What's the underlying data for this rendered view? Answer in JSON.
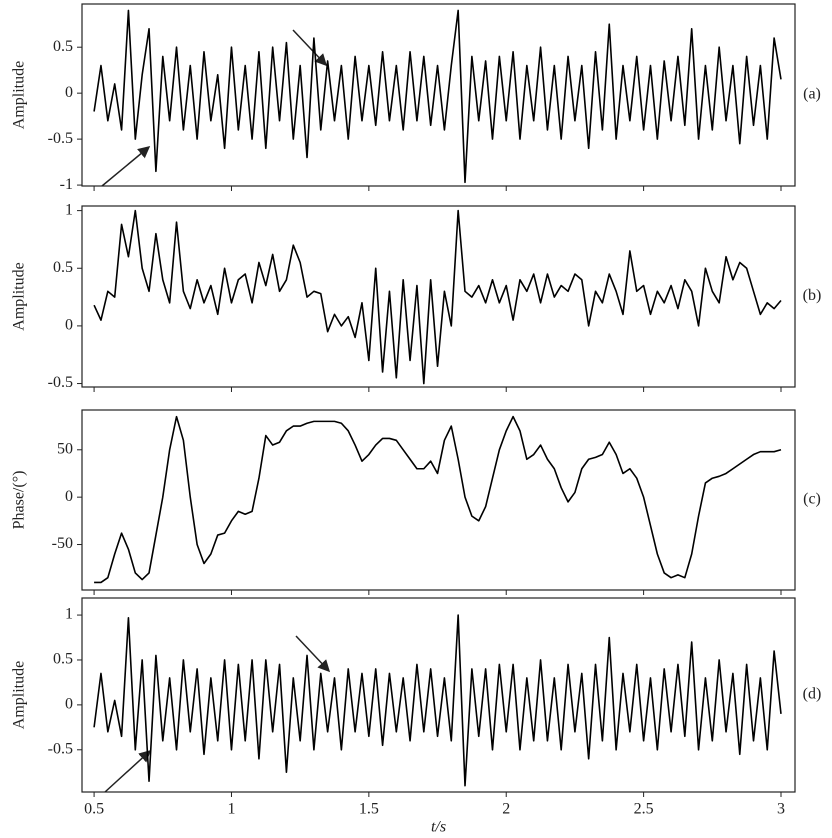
{
  "chart_data": [
    {
      "type": "line",
      "label": "(a)",
      "ylabel": "Amplitude",
      "xlim": [
        0.456,
        3.051
      ],
      "ylim": [
        -1.01,
        0.97
      ],
      "yticks": [
        -1,
        -0.5,
        0,
        0.5
      ],
      "color": "#000000",
      "x": [
        0.5,
        0.525,
        0.55,
        0.575,
        0.6,
        0.625,
        0.65,
        0.675,
        0.7,
        0.725,
        0.75,
        0.775,
        0.8,
        0.825,
        0.85,
        0.875,
        0.9,
        0.925,
        0.95,
        0.975,
        1.0,
        1.025,
        1.05,
        1.075,
        1.1,
        1.125,
        1.15,
        1.175,
        1.2,
        1.225,
        1.25,
        1.275,
        1.3,
        1.325,
        1.35,
        1.375,
        1.4,
        1.425,
        1.45,
        1.475,
        1.5,
        1.525,
        1.55,
        1.575,
        1.6,
        1.625,
        1.65,
        1.675,
        1.7,
        1.725,
        1.75,
        1.775,
        1.8,
        1.825,
        1.85,
        1.875,
        1.9,
        1.925,
        1.95,
        1.975,
        2.0,
        2.025,
        2.05,
        2.075,
        2.1,
        2.125,
        2.15,
        2.175,
        2.2,
        2.225,
        2.25,
        2.275,
        2.3,
        2.325,
        2.35,
        2.375,
        2.4,
        2.425,
        2.45,
        2.475,
        2.5,
        2.525,
        2.55,
        2.575,
        2.6,
        2.625,
        2.65,
        2.675,
        2.7,
        2.725,
        2.75,
        2.775,
        2.8,
        2.825,
        2.85,
        2.875,
        2.9,
        2.925,
        2.95,
        2.975,
        3.0
      ],
      "values": [
        -0.2,
        0.3,
        -0.3,
        0.1,
        -0.4,
        0.9,
        -0.5,
        0.2,
        0.7,
        -0.85,
        0.4,
        -0.3,
        0.5,
        -0.4,
        0.3,
        -0.5,
        0.45,
        -0.3,
        0.2,
        -0.6,
        0.5,
        -0.4,
        0.3,
        -0.5,
        0.45,
        -0.6,
        0.5,
        -0.3,
        0.55,
        -0.5,
        0.3,
        -0.7,
        0.6,
        -0.4,
        0.35,
        -0.3,
        0.3,
        -0.5,
        0.4,
        -0.3,
        0.3,
        -0.35,
        0.45,
        -0.3,
        0.3,
        -0.4,
        0.45,
        -0.3,
        0.4,
        -0.35,
        0.3,
        -0.4,
        0.3,
        0.9,
        -0.97,
        0.4,
        -0.3,
        0.35,
        -0.5,
        0.4,
        -0.3,
        0.45,
        -0.5,
        0.3,
        -0.3,
        0.5,
        -0.4,
        0.3,
        -0.5,
        0.4,
        -0.3,
        0.3,
        -0.6,
        0.45,
        -0.4,
        0.75,
        -0.5,
        0.3,
        -0.3,
        0.4,
        -0.4,
        0.3,
        -0.5,
        0.35,
        -0.3,
        0.4,
        -0.35,
        0.7,
        -0.5,
        0.3,
        -0.4,
        0.5,
        -0.3,
        0.3,
        -0.55,
        0.4,
        -0.35,
        0.3,
        -0.5,
        0.6,
        0.15
      ]
    },
    {
      "type": "line",
      "label": "(b)",
      "ylabel": "Amplitude",
      "xlim": [
        0.456,
        3.051
      ],
      "ylim": [
        -0.53,
        1.04
      ],
      "yticks": [
        -0.5,
        0,
        0.5,
        1
      ],
      "color": "#000000",
      "x": [
        0.5,
        0.525,
        0.55,
        0.575,
        0.6,
        0.625,
        0.65,
        0.675,
        0.7,
        0.725,
        0.75,
        0.775,
        0.8,
        0.825,
        0.85,
        0.875,
        0.9,
        0.925,
        0.95,
        0.975,
        1.0,
        1.025,
        1.05,
        1.075,
        1.1,
        1.125,
        1.15,
        1.175,
        1.2,
        1.225,
        1.25,
        1.275,
        1.3,
        1.325,
        1.35,
        1.375,
        1.4,
        1.425,
        1.45,
        1.475,
        1.5,
        1.525,
        1.55,
        1.575,
        1.6,
        1.625,
        1.65,
        1.675,
        1.7,
        1.725,
        1.75,
        1.775,
        1.8,
        1.825,
        1.85,
        1.875,
        1.9,
        1.925,
        1.95,
        1.975,
        2.0,
        2.025,
        2.05,
        2.075,
        2.1,
        2.125,
        2.15,
        2.175,
        2.2,
        2.225,
        2.25,
        2.275,
        2.3,
        2.325,
        2.35,
        2.375,
        2.4,
        2.425,
        2.45,
        2.475,
        2.5,
        2.525,
        2.55,
        2.575,
        2.6,
        2.625,
        2.65,
        2.675,
        2.7,
        2.725,
        2.75,
        2.775,
        2.8,
        2.825,
        2.85,
        2.875,
        2.9,
        2.925,
        2.95,
        2.975,
        3.0
      ],
      "values": [
        0.18,
        0.05,
        0.3,
        0.25,
        0.88,
        0.6,
        1.0,
        0.5,
        0.3,
        0.8,
        0.4,
        0.2,
        0.9,
        0.3,
        0.15,
        0.4,
        0.2,
        0.35,
        0.1,
        0.5,
        0.2,
        0.4,
        0.45,
        0.2,
        0.55,
        0.35,
        0.62,
        0.3,
        0.4,
        0.7,
        0.55,
        0.25,
        0.3,
        0.28,
        -0.05,
        0.1,
        0.0,
        0.08,
        -0.1,
        0.2,
        -0.3,
        0.5,
        -0.4,
        0.3,
        -0.45,
        0.4,
        -0.3,
        0.35,
        -0.5,
        0.4,
        -0.35,
        0.3,
        0.0,
        1.0,
        0.3,
        0.25,
        0.35,
        0.2,
        0.4,
        0.2,
        0.35,
        0.05,
        0.4,
        0.3,
        0.45,
        0.2,
        0.45,
        0.25,
        0.35,
        0.3,
        0.45,
        0.4,
        0.0,
        0.3,
        0.2,
        0.45,
        0.3,
        0.1,
        0.65,
        0.3,
        0.35,
        0.1,
        0.3,
        0.2,
        0.35,
        0.15,
        0.4,
        0.3,
        0.0,
        0.5,
        0.3,
        0.2,
        0.6,
        0.4,
        0.55,
        0.5,
        0.3,
        0.1,
        0.2,
        0.15,
        0.22
      ]
    },
    {
      "type": "line",
      "label": "(c)",
      "ylabel": "Phase/(°)",
      "xlim": [
        0.456,
        3.051
      ],
      "ylim": [
        -98,
        92
      ],
      "yticks": [
        -50,
        0,
        50
      ],
      "color": "#000000",
      "x": [
        0.5,
        0.525,
        0.55,
        0.575,
        0.6,
        0.625,
        0.65,
        0.675,
        0.7,
        0.725,
        0.75,
        0.775,
        0.8,
        0.825,
        0.85,
        0.875,
        0.9,
        0.925,
        0.95,
        0.975,
        1.0,
        1.025,
        1.05,
        1.075,
        1.1,
        1.125,
        1.15,
        1.175,
        1.2,
        1.225,
        1.25,
        1.275,
        1.3,
        1.325,
        1.35,
        1.375,
        1.4,
        1.425,
        1.45,
        1.475,
        1.5,
        1.525,
        1.55,
        1.575,
        1.6,
        1.625,
        1.65,
        1.675,
        1.7,
        1.725,
        1.75,
        1.775,
        1.8,
        1.825,
        1.85,
        1.875,
        1.9,
        1.925,
        1.95,
        1.975,
        2.0,
        2.025,
        2.05,
        2.075,
        2.1,
        2.125,
        2.15,
        2.175,
        2.2,
        2.225,
        2.25,
        2.275,
        2.3,
        2.325,
        2.35,
        2.375,
        2.4,
        2.425,
        2.45,
        2.475,
        2.5,
        2.525,
        2.55,
        2.575,
        2.6,
        2.625,
        2.65,
        2.675,
        2.7,
        2.725,
        2.75,
        2.775,
        2.8,
        2.825,
        2.85,
        2.875,
        2.9,
        2.925,
        2.95,
        2.975,
        3.0
      ],
      "values": [
        -90,
        -90,
        -85,
        -60,
        -38,
        -55,
        -80,
        -87,
        -80,
        -40,
        0,
        50,
        85,
        60,
        0,
        -50,
        -70,
        -60,
        -40,
        -38,
        -25,
        -15,
        -18,
        -15,
        20,
        65,
        55,
        58,
        70,
        75,
        75,
        78,
        80,
        80,
        80,
        80,
        78,
        70,
        55,
        38,
        45,
        55,
        62,
        62,
        60,
        50,
        40,
        30,
        30,
        38,
        25,
        60,
        75,
        40,
        0,
        -20,
        -25,
        -10,
        20,
        50,
        70,
        85,
        70,
        40,
        45,
        55,
        40,
        30,
        10,
        -5,
        5,
        30,
        40,
        42,
        45,
        58,
        45,
        25,
        30,
        20,
        0,
        -30,
        -60,
        -80,
        -85,
        -82,
        -85,
        -60,
        -20,
        15,
        20,
        22,
        25,
        30,
        35,
        40,
        45,
        48,
        48,
        48,
        50
      ]
    },
    {
      "type": "line",
      "label": "(d)",
      "ylabel": "Amplitude",
      "xlabel": "t/s",
      "xlim": [
        0.456,
        3.051
      ],
      "ylim": [
        -0.97,
        1.19
      ],
      "yticks": [
        -0.5,
        0,
        0.5,
        1
      ],
      "xticks": [
        0.5,
        1,
        1.5,
        2,
        2.5,
        3
      ],
      "color": "#000000",
      "x": [
        0.5,
        0.525,
        0.55,
        0.575,
        0.6,
        0.625,
        0.65,
        0.675,
        0.7,
        0.725,
        0.75,
        0.775,
        0.8,
        0.825,
        0.85,
        0.875,
        0.9,
        0.925,
        0.95,
        0.975,
        1.0,
        1.025,
        1.05,
        1.075,
        1.1,
        1.125,
        1.15,
        1.175,
        1.2,
        1.225,
        1.25,
        1.275,
        1.3,
        1.325,
        1.35,
        1.375,
        1.4,
        1.425,
        1.45,
        1.475,
        1.5,
        1.525,
        1.55,
        1.575,
        1.6,
        1.625,
        1.65,
        1.675,
        1.7,
        1.725,
        1.75,
        1.775,
        1.8,
        1.825,
        1.85,
        1.875,
        1.9,
        1.925,
        1.95,
        1.975,
        2.0,
        2.025,
        2.05,
        2.075,
        2.1,
        2.125,
        2.15,
        2.175,
        2.2,
        2.225,
        2.25,
        2.275,
        2.3,
        2.325,
        2.35,
        2.375,
        2.4,
        2.425,
        2.45,
        2.475,
        2.5,
        2.525,
        2.55,
        2.575,
        2.6,
        2.625,
        2.65,
        2.675,
        2.7,
        2.725,
        2.75,
        2.775,
        2.8,
        2.825,
        2.85,
        2.875,
        2.9,
        2.925,
        2.95,
        2.975,
        3.0
      ],
      "values": [
        -0.25,
        0.35,
        -0.3,
        0.05,
        -0.35,
        0.97,
        -0.5,
        0.5,
        -0.85,
        0.55,
        -0.4,
        0.3,
        -0.5,
        0.5,
        -0.3,
        0.4,
        -0.55,
        0.3,
        -0.4,
        0.5,
        -0.5,
        0.45,
        -0.4,
        0.5,
        -0.6,
        0.5,
        -0.3,
        0.45,
        -0.75,
        0.3,
        -0.4,
        0.55,
        -0.5,
        0.35,
        -0.3,
        0.3,
        -0.5,
        0.4,
        -0.3,
        0.35,
        -0.35,
        0.4,
        -0.45,
        0.35,
        -0.3,
        0.3,
        -0.4,
        0.45,
        -0.3,
        0.4,
        -0.35,
        0.3,
        -0.4,
        1.0,
        -0.9,
        0.4,
        -0.35,
        0.4,
        -0.5,
        0.45,
        -0.3,
        0.45,
        -0.5,
        0.3,
        -0.4,
        0.5,
        -0.4,
        0.3,
        -0.5,
        0.45,
        -0.3,
        0.35,
        -0.6,
        0.45,
        -0.4,
        0.75,
        -0.5,
        0.35,
        -0.3,
        0.45,
        -0.4,
        0.3,
        -0.5,
        0.4,
        -0.3,
        0.45,
        -0.35,
        0.7,
        -0.5,
        0.3,
        -0.4,
        0.5,
        -0.3,
        0.35,
        -0.55,
        0.45,
        -0.4,
        0.3,
        -0.5,
        0.6,
        -0.1
      ]
    }
  ]
}
